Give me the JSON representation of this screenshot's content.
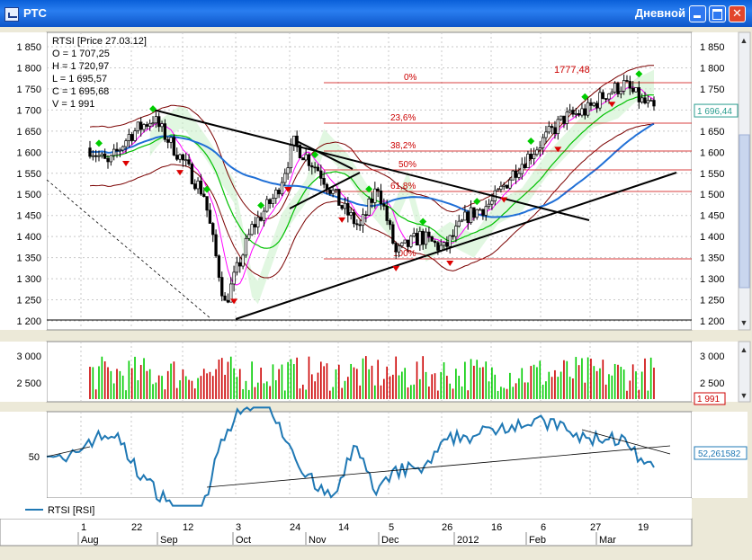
{
  "window": {
    "title": "РТС",
    "period_label": "Дневной",
    "icon_name": "chart-window-icon"
  },
  "chart_data": [
    {
      "type": "candlestick",
      "panel": "price",
      "title": "RTSI [Price 27.03.12]",
      "info_lines": [
        "O = 1 707,25",
        "H = 1 720,97",
        "L = 1 695,57",
        "C = 1 695,68",
        "V = 1 991"
      ],
      "yticks": [
        "1 850",
        "1 800",
        "1 750",
        "1 700",
        "1 650",
        "1 600",
        "1 550",
        "1 500",
        "1 450",
        "1 400",
        "1 350",
        "1 300",
        "1 250",
        "1 200"
      ],
      "ylim": [
        1180,
        1880
      ],
      "last_value": "1 696,44",
      "fibonacci": {
        "high_value": "1777,48",
        "levels": [
          "0%",
          "23,6%",
          "38,2%",
          "50%",
          "61,8%",
          "100%"
        ]
      },
      "colors": {
        "up": "#000000",
        "down": "#000000",
        "sma_short": "#ff00ff",
        "sma_mid": "#00c000",
        "sma_long": "#1f6fd6",
        "bollinger": "#7a0000",
        "ichimoku_cloud": "#00cc44",
        "fractal_up": "#00cc00",
        "fractal_down": "#dd0000",
        "fib": "#cc0000"
      }
    },
    {
      "type": "bar",
      "panel": "volume",
      "yticks": [
        "3 000",
        "2 500"
      ],
      "last_value": "1 991",
      "colors": {
        "up": "#00cc00",
        "down": "#cc0000"
      }
    },
    {
      "type": "line",
      "panel": "indicator",
      "legend": "RTSI [RSI]",
      "yticks": [
        "50"
      ],
      "last_value": "52,261582",
      "color": "#1f78b4"
    }
  ],
  "time_axis": {
    "days": [
      "1",
      "22",
      "12",
      "3",
      "24",
      "14",
      "5",
      "26",
      "16",
      "6",
      "27",
      "19"
    ],
    "months": [
      "Aug",
      "Sep",
      "Oct",
      "Nov",
      "Dec",
      "2012",
      "Feb",
      "Mar"
    ]
  }
}
